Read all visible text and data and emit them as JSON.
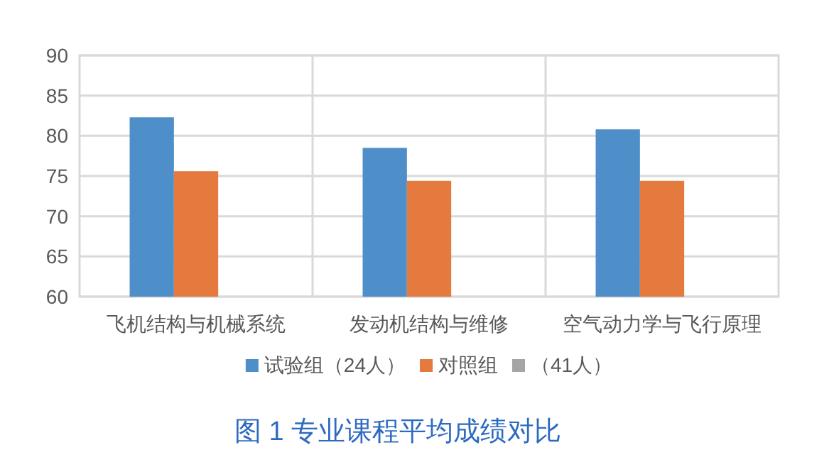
{
  "chart_data": {
    "type": "bar",
    "title": "图 1 专业课程平均成绩对比",
    "categories": [
      "飞机结构与机械系统",
      "发动机结构与维修",
      "空气动力学与飞行原理"
    ],
    "series": [
      {
        "name": "试验组（24人）",
        "color": "#4f8fc9",
        "values": [
          82.3,
          78.5,
          80.8
        ]
      },
      {
        "name": "对照组",
        "color": "#e57a3f",
        "values": [
          75.6,
          74.4,
          74.4
        ]
      },
      {
        "name": "（41人）",
        "color": "#a5a5a5",
        "values": [
          null,
          null,
          null
        ]
      }
    ],
    "ylim": [
      60,
      90
    ],
    "yticks": [
      60,
      65,
      70,
      75,
      80,
      85,
      90
    ],
    "grid": true,
    "legend": "bottom"
  }
}
